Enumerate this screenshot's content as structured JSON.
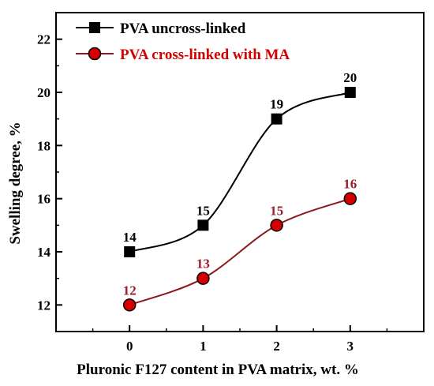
{
  "chart_data": {
    "type": "line",
    "x": [
      0,
      1,
      2,
      3
    ],
    "xticks": [
      "0",
      "1",
      "2",
      "3"
    ],
    "xlim": [
      -1,
      4
    ],
    "yticks": [
      "12",
      "14",
      "16",
      "18",
      "20",
      "22"
    ],
    "ylim": [
      11,
      23
    ],
    "xlabel": "Pluronic F127 content in PVA matrix, wt. %",
    "ylabel": "Swelling degree, %",
    "legend_position": "top-left",
    "series": [
      {
        "name": "PVA uncross-linked",
        "values": [
          14,
          15,
          19,
          20
        ],
        "labels": [
          "14",
          "15",
          "19",
          "20"
        ],
        "marker": "square",
        "color": "#000000",
        "label_color": "#000000"
      },
      {
        "name": "PVA cross-linked with MA",
        "values": [
          12,
          13,
          15,
          16
        ],
        "labels": [
          "12",
          "13",
          "15",
          "16"
        ],
        "marker": "circle",
        "color": "#d40000",
        "line_color": "#8b1a1a",
        "label_color": "#9b1c2c"
      }
    ]
  }
}
